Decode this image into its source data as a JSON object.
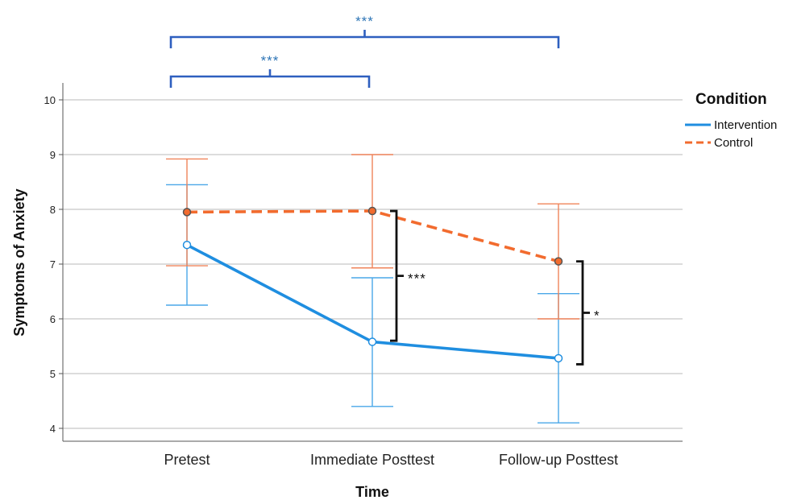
{
  "chart_data": {
    "type": "line",
    "xlabel": "Time",
    "ylabel": "Symptoms of Anxiety",
    "categories": [
      "Pretest",
      "Immediate Posttest",
      "Follow-up Posttest"
    ],
    "ylim": [
      4,
      10
    ],
    "yticks": [
      4,
      5,
      6,
      7,
      8,
      9,
      10
    ],
    "grid": "horizontal",
    "legend": {
      "title": "Condition",
      "placement": "right"
    },
    "series": [
      {
        "name": "Intervention",
        "color": "#1f8ee0",
        "style": "solid",
        "values": [
          7.35,
          5.58,
          5.28
        ],
        "error_low": [
          6.25,
          4.4,
          4.1
        ],
        "error_high": [
          8.45,
          6.75,
          6.46
        ]
      },
      {
        "name": "Control",
        "color": "#f26b2e",
        "style": "dashed",
        "values": [
          7.95,
          7.97,
          7.05
        ],
        "error_low": [
          6.97,
          6.93,
          6.0
        ],
        "error_high": [
          8.92,
          9.0,
          8.1
        ]
      }
    ],
    "annotations": {
      "top_brackets": [
        {
          "from": "Pretest",
          "to": "Follow-up Posttest",
          "label": "***"
        },
        {
          "from": "Pretest",
          "to": "Immediate Posttest",
          "label": "***"
        }
      ],
      "side_brackets": [
        {
          "at": "Immediate Posttest",
          "from_value": 7.97,
          "to_value": 5.6,
          "label": "***"
        },
        {
          "at": "Follow-up Posttest",
          "from_value": 7.05,
          "to_value": 5.17,
          "label": "*"
        }
      ],
      "top_bracket_color": "#2e5fbf"
    }
  }
}
